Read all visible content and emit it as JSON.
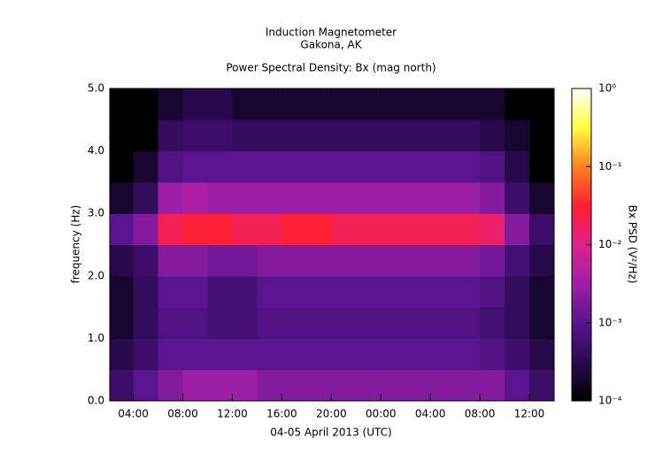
{
  "chart_data": {
    "type": "heatmap",
    "title": "Induction Magnetometer",
    "subtitle": "Gakona, AK",
    "plot_title": "Power Spectral Density: Bx (mag north)",
    "x_label": "04-05 April 2013 (UTC)",
    "y_label": "frequency (Hz)",
    "colorbar_label": "Bx PSD (V²/Hz)",
    "xlim": [
      2.1,
      38
    ],
    "xticks": [
      {
        "value": 4,
        "label": "04:00"
      },
      {
        "value": 8,
        "label": "08:00"
      },
      {
        "value": 12,
        "label": "12:00"
      },
      {
        "value": 16,
        "label": "16:00"
      },
      {
        "value": 20,
        "label": "20:00"
      },
      {
        "value": 24,
        "label": "00:00"
      },
      {
        "value": 28,
        "label": "04:00"
      },
      {
        "value": 32,
        "label": "08:00"
      },
      {
        "value": 36,
        "label": "12:00"
      }
    ],
    "ylim": [
      0,
      5
    ],
    "yticks": [
      {
        "value": 0,
        "label": "0.0"
      },
      {
        "value": 1,
        "label": "1.0"
      },
      {
        "value": 2,
        "label": "2.0"
      },
      {
        "value": 3,
        "label": "3.0"
      },
      {
        "value": 4,
        "label": "4.0"
      },
      {
        "value": 5,
        "label": "5.0"
      }
    ],
    "clim": [
      0.0001,
      1
    ],
    "log_color": true,
    "cticks": [
      {
        "value": 0.0001,
        "label": "10⁻⁴"
      },
      {
        "value": 0.001,
        "label": "10⁻³"
      },
      {
        "value": 0.01,
        "label": "10⁻²"
      },
      {
        "value": 0.1,
        "label": "10⁻¹"
      },
      {
        "value": 1,
        "label": "10⁰"
      }
    ],
    "colorscale": [
      "#000000",
      "#2a0a50",
      "#5a1490",
      "#a01ea8",
      "#e0208c",
      "#ff2030",
      "#ff8020",
      "#ffff40",
      "#ffffff"
    ],
    "x_bins": [
      2.1,
      4,
      6,
      8,
      10,
      12,
      14,
      16,
      18,
      20,
      22,
      24,
      26,
      28,
      30,
      32,
      34,
      36,
      38
    ],
    "y_bins": [
      0,
      0.5,
      1,
      1.5,
      2,
      2.5,
      3,
      3.5,
      4,
      4.5,
      5
    ],
    "z": [
      [
        0.0005,
        0.001,
        0.002,
        0.003,
        0.003,
        0.003,
        0.002,
        0.002,
        0.002,
        0.002,
        0.002,
        0.002,
        0.002,
        0.002,
        0.002,
        0.002,
        0.001,
        0.0005
      ],
      [
        0.0003,
        0.0005,
        0.001,
        0.001,
        0.001,
        0.001,
        0.001,
        0.001,
        0.001,
        0.001,
        0.001,
        0.001,
        0.001,
        0.001,
        0.001,
        0.0008,
        0.0005,
        0.0003
      ],
      [
        0.0002,
        0.0004,
        0.0008,
        0.0008,
        0.0006,
        0.0006,
        0.0008,
        0.0008,
        0.0008,
        0.0008,
        0.0008,
        0.0008,
        0.0008,
        0.0008,
        0.0008,
        0.0006,
        0.0004,
        0.0002
      ],
      [
        0.0002,
        0.0004,
        0.001,
        0.001,
        0.0006,
        0.0006,
        0.001,
        0.001,
        0.001,
        0.001,
        0.001,
        0.001,
        0.001,
        0.001,
        0.001,
        0.0008,
        0.0004,
        0.0002
      ],
      [
        0.0003,
        0.0005,
        0.002,
        0.002,
        0.0015,
        0.0015,
        0.002,
        0.002,
        0.002,
        0.002,
        0.002,
        0.002,
        0.002,
        0.002,
        0.002,
        0.0015,
        0.0006,
        0.0003
      ],
      [
        0.001,
        0.002,
        0.02,
        0.03,
        0.03,
        0.02,
        0.02,
        0.03,
        0.03,
        0.02,
        0.02,
        0.02,
        0.02,
        0.02,
        0.02,
        0.015,
        0.002,
        0.0005
      ],
      [
        0.0002,
        0.0004,
        0.003,
        0.004,
        0.003,
        0.003,
        0.003,
        0.003,
        0.003,
        0.003,
        0.003,
        0.003,
        0.003,
        0.003,
        0.003,
        0.002,
        0.0005,
        0.0002
      ],
      [
        0.0001,
        0.0002,
        0.0008,
        0.001,
        0.001,
        0.001,
        0.001,
        0.001,
        0.001,
        0.001,
        0.001,
        0.001,
        0.001,
        0.001,
        0.001,
        0.0008,
        0.0003,
        0.0001
      ],
      [
        0.0001,
        0.0001,
        0.0004,
        0.0005,
        0.0005,
        0.0004,
        0.0004,
        0.0004,
        0.0004,
        0.0004,
        0.0004,
        0.0004,
        0.0004,
        0.0004,
        0.0004,
        0.0003,
        0.0002,
        0.0001
      ],
      [
        0.0001,
        0.0001,
        0.0002,
        0.0003,
        0.0003,
        0.0002,
        0.0002,
        0.0002,
        0.0002,
        0.0002,
        0.0002,
        0.0002,
        0.0002,
        0.0002,
        0.0002,
        0.0002,
        0.0001,
        0.0001
      ]
    ]
  }
}
